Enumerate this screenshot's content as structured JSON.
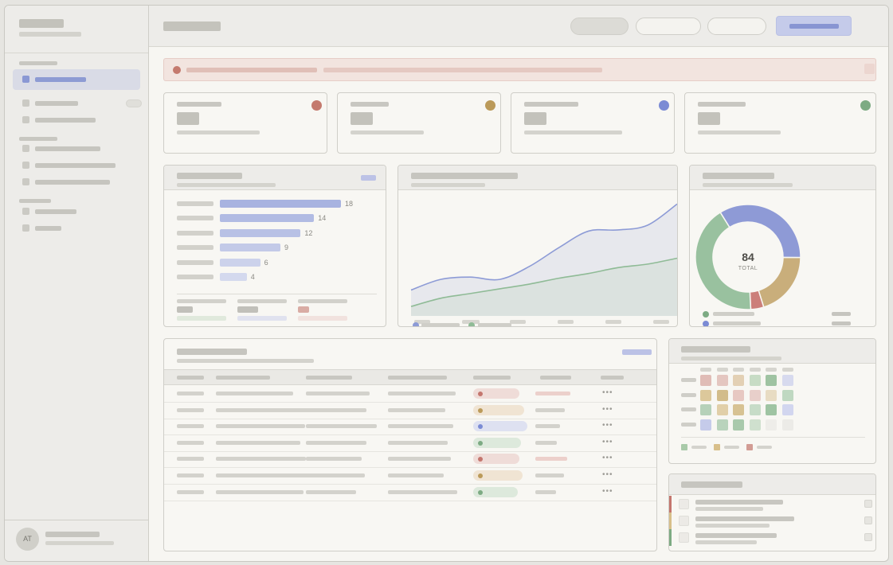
{
  "kpis": [
    {
      "dot_color": "#c47a6e"
    },
    {
      "dot_color": "#bb9a59"
    },
    {
      "dot_color": "#7b8bd4"
    },
    {
      "dot_color": "#7dab83"
    }
  ],
  "bar_panel": {
    "bars": [
      {
        "value": 18,
        "color": "#a8b3e0"
      },
      {
        "value": 14,
        "color": "#b1bbe3"
      },
      {
        "value": 12,
        "color": "#b8c1e5"
      },
      {
        "value": 9,
        "color": "#c3cae8"
      },
      {
        "value": 6,
        "color": "#ccd2eb"
      },
      {
        "value": 4,
        "color": "#d4d9ee"
      }
    ],
    "max_value": 18,
    "legend_bars": [
      {
        "color": "#c1c0ba",
        "track": "#e0e9dc"
      },
      {
        "color": "#c1c0ba",
        "track": "#e0e2ef"
      },
      {
        "color": "#d9aca4",
        "track": "#f1e2de"
      }
    ]
  },
  "chart_data": [
    {
      "type": "area",
      "series": [
        {
          "color": "#8d9bd6",
          "values": [
            0.22,
            0.31,
            0.33,
            0.31,
            0.42,
            0.58,
            0.72,
            0.73,
            0.77,
            0.95
          ]
        },
        {
          "color": "#8fbb96",
          "values": [
            0.08,
            0.15,
            0.19,
            0.23,
            0.27,
            0.32,
            0.36,
            0.41,
            0.44,
            0.49
          ]
        }
      ],
      "grid": false
    },
    {
      "type": "pie",
      "total_value": "84",
      "total_label": "TOTAL",
      "slices": [
        {
          "value": 0.34,
          "color": "#8e9ad6"
        },
        {
          "value": 0.2,
          "color": "#c9ae7b"
        },
        {
          "value": 0.04,
          "color": "#cc7f7a"
        },
        {
          "value": 0.42,
          "color": "#99c19f"
        }
      ],
      "legend": [
        {
          "color": "#7dab83"
        },
        {
          "color": "#7b8bd4"
        }
      ]
    }
  ],
  "table": {
    "rows": [
      {
        "status_color": "#c4766e",
        "status_bg": "#efdcd8",
        "muted": true
      },
      {
        "status_color": "#bb9a59",
        "status_bg": "#f0e4d3",
        "muted": false
      },
      {
        "status_color": "#7b8bd4",
        "status_bg": "#dee1f1",
        "muted": false
      },
      {
        "status_color": "#7dab83",
        "status_bg": "#dde9dc",
        "muted": false
      },
      {
        "status_color": "#c4766e",
        "status_bg": "#efdcd8",
        "muted": true
      },
      {
        "status_color": "#bb9a59",
        "status_bg": "#f0e4d3",
        "muted": false
      },
      {
        "status_color": "#7dab83",
        "status_bg": "#dde9dc",
        "muted": false
      }
    ]
  },
  "heatmap": {
    "cells": [
      [
        "#e0bcb6",
        "#e4c6c0",
        "#e3d0b4",
        "#c7dcc5",
        "#9fc3a2",
        "#d7daee"
      ],
      [
        "#dcc89b",
        "#d2bc8a",
        "#e7c8c2",
        "#e8cfca",
        "#e8dcc3",
        "#bfd8c1"
      ],
      [
        "#b6d1b9",
        "#e1cfa8",
        "#d7c293",
        "#c7dcc8",
        "#9fc4a3",
        "#d2d6ef"
      ],
      [
        "#c5cbea",
        "#b9d3bc",
        "#a9c9ac",
        "#cfe0ce",
        "#eeede9",
        "#ecebe7"
      ]
    ],
    "legend": [
      {
        "color": "#a9caa9"
      },
      {
        "color": "#d8bf8a"
      },
      {
        "color": "#d29c94"
      }
    ]
  },
  "activity": {
    "items": [
      {
        "accent": "#c4766e"
      },
      {
        "accent": "#d8bf8a"
      },
      {
        "accent": "#7dab83"
      }
    ]
  },
  "user": {
    "initials": "AT"
  }
}
